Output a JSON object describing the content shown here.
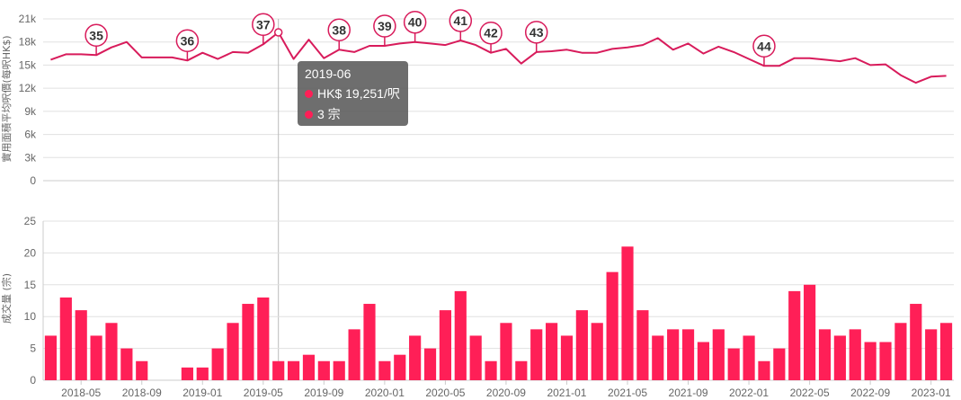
{
  "chart_data": [
    {
      "type": "line",
      "ylabel": "實用面積平均呎價(每呎HK$)",
      "ylim": [
        0,
        21000
      ],
      "y_ticks": [
        "0",
        "3k",
        "6k",
        "9k",
        "12k",
        "15k",
        "18k",
        "21k"
      ],
      "grid": true,
      "series": [
        {
          "color": "#d81b5b",
          "values": [
            15700,
            16400,
            16400,
            16300,
            17300,
            18000,
            16000,
            16000,
            16000,
            15600,
            16600,
            15800,
            16700,
            16600,
            17700,
            19251,
            15800,
            18300,
            15900,
            17000,
            16700,
            17500,
            17500,
            17800,
            18000,
            17800,
            17600,
            18200,
            17600,
            16600,
            17100,
            15200,
            16700,
            16800,
            17000,
            16600,
            16600,
            17100,
            17300,
            17600,
            18500,
            17000,
            17800,
            16500,
            17400,
            16700,
            15800,
            14900,
            14900,
            15900,
            15900,
            15700,
            15500,
            15900,
            15000,
            15100,
            13700,
            12700,
            13500,
            13600
          ]
        }
      ],
      "annotations": [
        {
          "label": "35",
          "index": 3
        },
        {
          "label": "36",
          "index": 9
        },
        {
          "label": "37",
          "index": 14
        },
        {
          "label": "38",
          "index": 19
        },
        {
          "label": "39",
          "index": 22
        },
        {
          "label": "40",
          "index": 24
        },
        {
          "label": "41",
          "index": 27
        },
        {
          "label": "42",
          "index": 29
        },
        {
          "label": "43",
          "index": 32
        },
        {
          "label": "44",
          "index": 47
        }
      ]
    },
    {
      "type": "bar",
      "ylabel": "成交量 (宗)",
      "ylim": [
        0,
        25
      ],
      "y_ticks": [
        "0",
        "5",
        "10",
        "15",
        "20",
        "25"
      ],
      "grid": true,
      "series": [
        {
          "color": "#ff1f57",
          "values": [
            7,
            13,
            11,
            7,
            9,
            5,
            3,
            0,
            0,
            2,
            2,
            5,
            9,
            12,
            13,
            3,
            3,
            4,
            3,
            3,
            8,
            12,
            3,
            4,
            7,
            5,
            11,
            14,
            7,
            3,
            9,
            3,
            8,
            9,
            7,
            11,
            9,
            17,
            21,
            11,
            7,
            8,
            8,
            6,
            8,
            5,
            7,
            3,
            5,
            14,
            15,
            8,
            7,
            8,
            6,
            6,
            9,
            12,
            8,
            9
          ]
        }
      ]
    }
  ],
  "x_axis": {
    "ticks": [
      {
        "label": "2018-05",
        "index": 2
      },
      {
        "label": "2018-09",
        "index": 6
      },
      {
        "label": "2019-01",
        "index": 10
      },
      {
        "label": "2019-05",
        "index": 14
      },
      {
        "label": "2019-09",
        "index": 18
      },
      {
        "label": "2020-01",
        "index": 22
      },
      {
        "label": "2020-05",
        "index": 26
      },
      {
        "label": "2020-09",
        "index": 30
      },
      {
        "label": "2021-01",
        "index": 34
      },
      {
        "label": "2021-05",
        "index": 38
      },
      {
        "label": "2021-09",
        "index": 42
      },
      {
        "label": "2022-01",
        "index": 46
      },
      {
        "label": "2022-05",
        "index": 50
      },
      {
        "label": "2022-09",
        "index": 54
      },
      {
        "label": "2023-01",
        "index": 58
      }
    ]
  },
  "tooltip": {
    "index": 15,
    "title": "2019-06",
    "price": "HK$ 19,251/呎",
    "volume": "3 宗",
    "dot_color": "#ff1f57"
  }
}
